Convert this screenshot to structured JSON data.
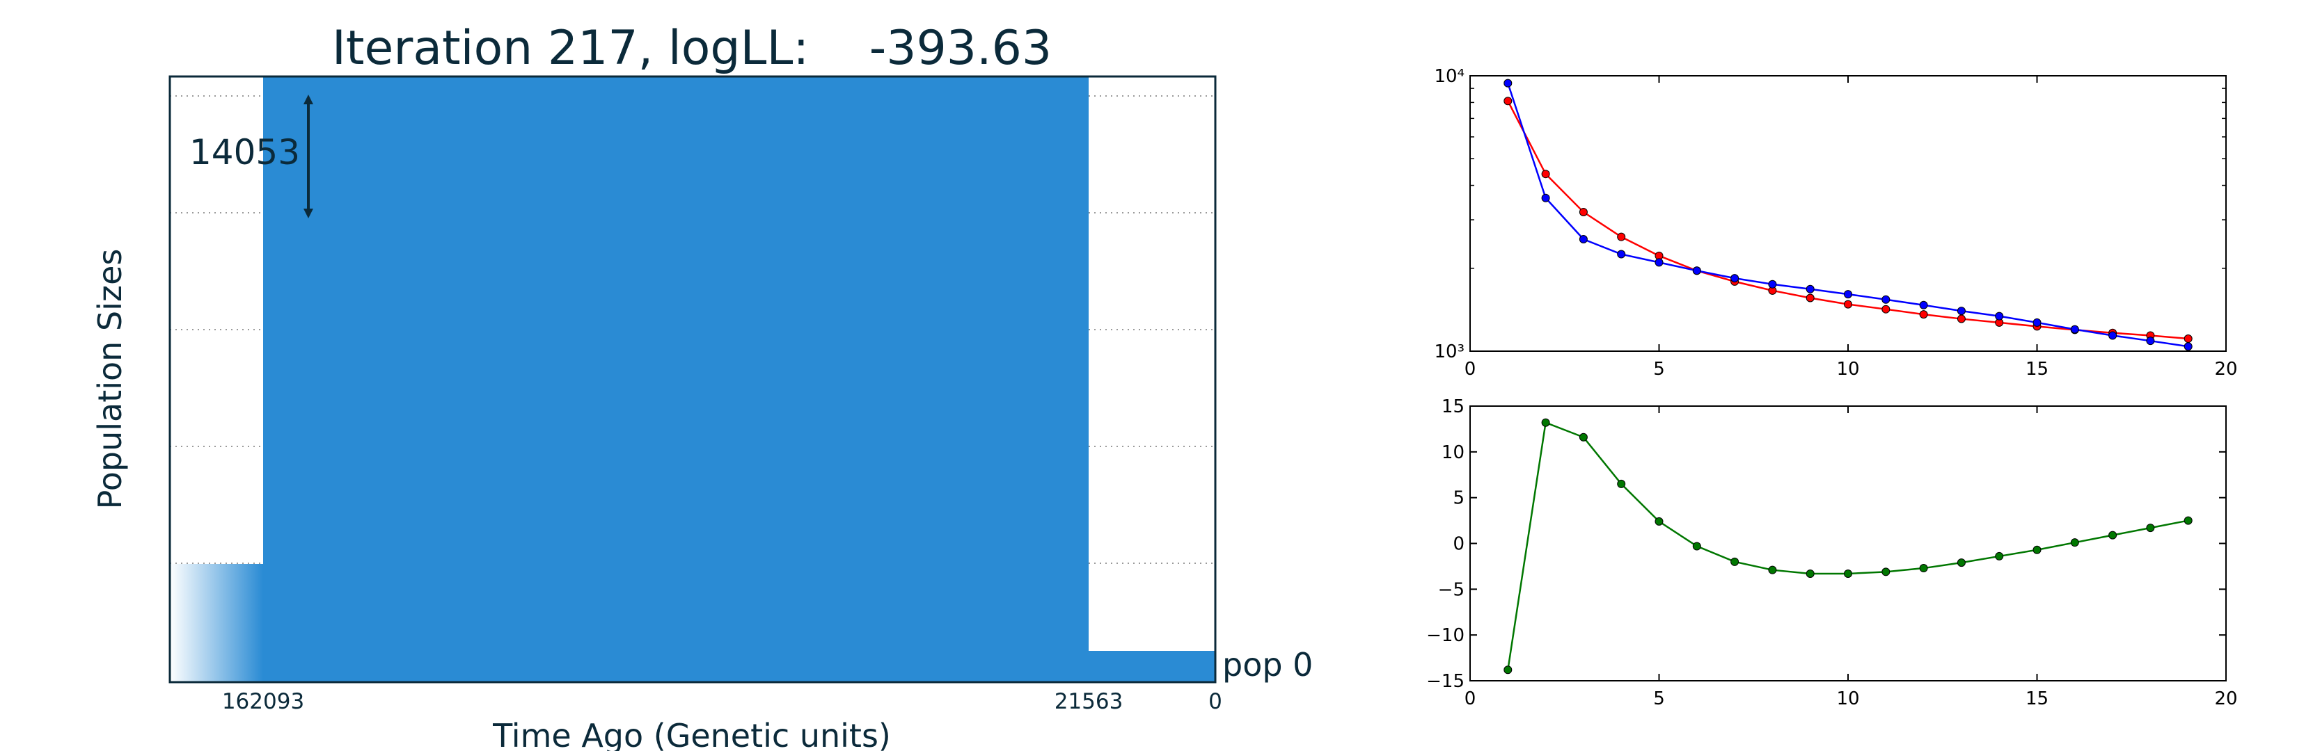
{
  "colors": {
    "population_fill": "#2a8bd4",
    "text": "#0b2a3a",
    "series_red": "#ff0000",
    "series_blue": "#0000ff",
    "series_green": "#007700",
    "grid": "#9a9a9a"
  },
  "chart_data": [
    {
      "type": "area",
      "title": "Iteration 217, logLL:    -393.63",
      "xlabel": "Time Ago (Genetic units)",
      "ylabel": "Population Sizes",
      "x_ticks": [
        "162093",
        "21563",
        "0"
      ],
      "population_label": "pop 0",
      "scale_annotation": "14053",
      "grid": "horizontal-dotted",
      "epochs": [
        {
          "time_start": 0,
          "time_end": 21563,
          "relative_size": 0.05
        },
        {
          "time_start": 21563,
          "time_end": 162093,
          "relative_size": 1.0
        },
        {
          "time_start": 162093,
          "time_end": null,
          "relative_size": 0.195,
          "fade": true
        }
      ]
    },
    {
      "type": "line",
      "yscale": "log",
      "xlim": [
        0,
        20
      ],
      "ylim": [
        1000,
        10000
      ],
      "x_ticks": [
        "0",
        "5",
        "10",
        "15",
        "20"
      ],
      "y_ticks": [
        "10³",
        "10⁴"
      ],
      "x": [
        1,
        2,
        3,
        4,
        5,
        6,
        7,
        8,
        9,
        10,
        11,
        12,
        13,
        14,
        15,
        16,
        17,
        18,
        19
      ],
      "series": [
        {
          "color": "#ff0000",
          "values": [
            8100,
            4400,
            3200,
            2600,
            2220,
            1960,
            1790,
            1660,
            1560,
            1480,
            1420,
            1360,
            1310,
            1270,
            1230,
            1195,
            1165,
            1140,
            1110
          ]
        },
        {
          "color": "#0000ff",
          "values": [
            9400,
            3600,
            2550,
            2250,
            2100,
            1960,
            1840,
            1750,
            1680,
            1610,
            1540,
            1470,
            1400,
            1340,
            1270,
            1200,
            1140,
            1090,
            1040
          ]
        }
      ]
    },
    {
      "type": "line",
      "xlim": [
        0,
        20
      ],
      "ylim": [
        -15,
        15
      ],
      "x_ticks": [
        "0",
        "5",
        "10",
        "15",
        "20"
      ],
      "y_ticks": [
        "15",
        "10",
        "5",
        "0",
        "−5",
        "−10",
        "−15"
      ],
      "x": [
        1,
        2,
        3,
        4,
        5,
        6,
        7,
        8,
        9,
        10,
        11,
        12,
        13,
        14,
        15,
        16,
        17,
        18,
        19
      ],
      "series": [
        {
          "color": "#007700",
          "values": [
            -13.8,
            13.2,
            11.6,
            6.5,
            2.4,
            -0.3,
            -2.0,
            -2.9,
            -3.3,
            -3.3,
            -3.1,
            -2.7,
            -2.1,
            -1.4,
            -0.7,
            0.1,
            0.9,
            1.7,
            2.5
          ]
        }
      ]
    }
  ]
}
